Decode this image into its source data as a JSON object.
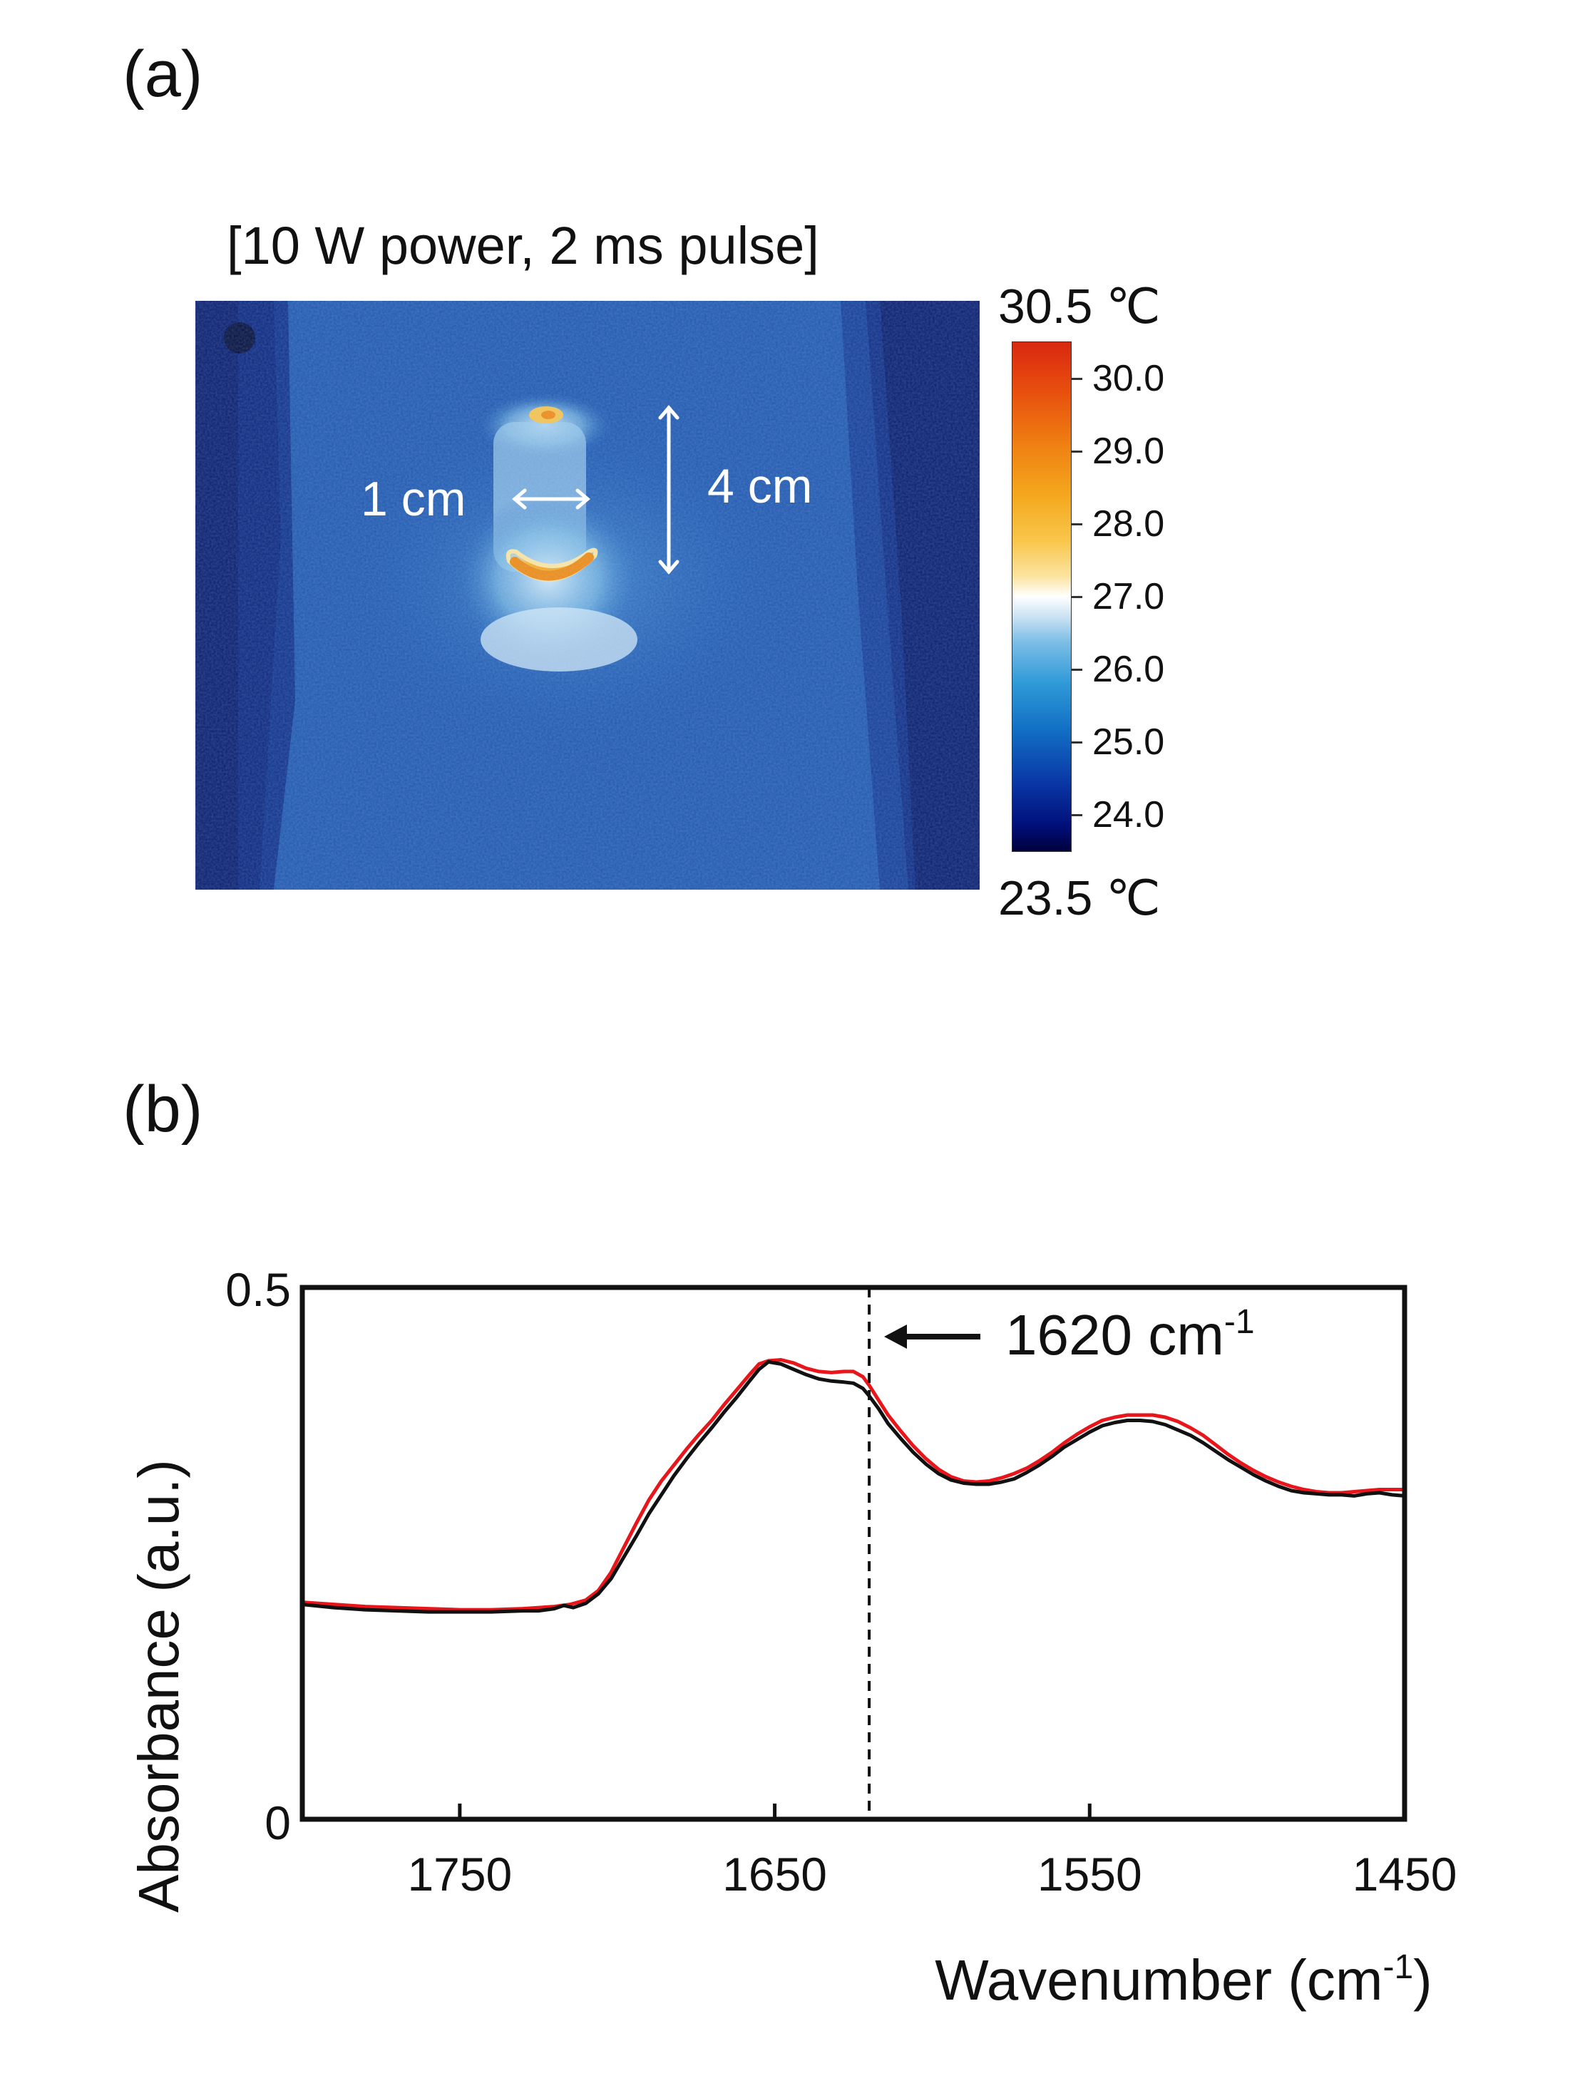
{
  "panel_a": {
    "label": "(a)",
    "title": "[10 W power, 2 ms pulse]",
    "width_annotation": "1 cm",
    "height_annotation": "4 cm",
    "colorbar": {
      "max_label": "30.5 ℃",
      "min_label": "23.5 ℃",
      "ticks": [
        "30.0",
        "29.0",
        "28.0",
        "27.0",
        "26.0",
        "25.0",
        "24.0"
      ],
      "range": [
        23.5,
        30.5
      ],
      "colors": [
        "#00003c",
        "#0a3aa8",
        "#2f9ad8",
        "#ffffff",
        "#f9c64a",
        "#ef7f12",
        "#d92810"
      ]
    }
  },
  "panel_b": {
    "label": "(b)",
    "annotation": "1620 cm",
    "annotation_sup": "-1"
  },
  "chart_data": {
    "type": "line",
    "xlabel": "Wavenumber (cm",
    "xlabel_sup": "-1",
    "xlabel_close": ")",
    "ylabel": "Absorbance (a.u.)",
    "xlim": [
      1800,
      1450
    ],
    "x_reversed": true,
    "ylim": [
      0,
      0.5
    ],
    "xticks": [
      1750,
      1650,
      1550,
      1450
    ],
    "yticks": [
      0,
      0.5
    ],
    "ytick_labels": [
      "0",
      "0.5"
    ],
    "vline_x": 1620,
    "grid": false,
    "series": [
      {
        "color": "#e8161b",
        "points": [
          [
            1800,
            0.204
          ],
          [
            1790,
            0.202
          ],
          [
            1780,
            0.2
          ],
          [
            1770,
            0.199
          ],
          [
            1760,
            0.198
          ],
          [
            1750,
            0.197
          ],
          [
            1740,
            0.197
          ],
          [
            1730,
            0.198
          ],
          [
            1720,
            0.2
          ],
          [
            1715,
            0.202
          ],
          [
            1710,
            0.206
          ],
          [
            1706,
            0.215
          ],
          [
            1702,
            0.232
          ],
          [
            1698,
            0.255
          ],
          [
            1694,
            0.278
          ],
          [
            1690,
            0.3
          ],
          [
            1686,
            0.318
          ],
          [
            1682,
            0.333
          ],
          [
            1678,
            0.348
          ],
          [
            1674,
            0.362
          ],
          [
            1670,
            0.375
          ],
          [
            1666,
            0.39
          ],
          [
            1662,
            0.404
          ],
          [
            1658,
            0.418
          ],
          [
            1655,
            0.428
          ],
          [
            1652,
            0.431
          ],
          [
            1648,
            0.432
          ],
          [
            1644,
            0.429
          ],
          [
            1640,
            0.424
          ],
          [
            1636,
            0.421
          ],
          [
            1632,
            0.42
          ],
          [
            1628,
            0.421
          ],
          [
            1625,
            0.421
          ],
          [
            1622,
            0.416
          ],
          [
            1620,
            0.408
          ],
          [
            1617,
            0.394
          ],
          [
            1614,
            0.38
          ],
          [
            1610,
            0.365
          ],
          [
            1606,
            0.351
          ],
          [
            1602,
            0.339
          ],
          [
            1598,
            0.329
          ],
          [
            1594,
            0.322
          ],
          [
            1590,
            0.318
          ],
          [
            1586,
            0.317
          ],
          [
            1582,
            0.318
          ],
          [
            1578,
            0.321
          ],
          [
            1574,
            0.325
          ],
          [
            1570,
            0.33
          ],
          [
            1566,
            0.337
          ],
          [
            1562,
            0.345
          ],
          [
            1558,
            0.354
          ],
          [
            1554,
            0.362
          ],
          [
            1550,
            0.369
          ],
          [
            1546,
            0.375
          ],
          [
            1542,
            0.378
          ],
          [
            1538,
            0.38
          ],
          [
            1534,
            0.38
          ],
          [
            1530,
            0.38
          ],
          [
            1526,
            0.378
          ],
          [
            1522,
            0.374
          ],
          [
            1518,
            0.368
          ],
          [
            1514,
            0.361
          ],
          [
            1510,
            0.352
          ],
          [
            1506,
            0.343
          ],
          [
            1502,
            0.335
          ],
          [
            1498,
            0.328
          ],
          [
            1494,
            0.322
          ],
          [
            1490,
            0.317
          ],
          [
            1486,
            0.313
          ],
          [
            1482,
            0.31
          ],
          [
            1478,
            0.308
          ],
          [
            1474,
            0.307
          ],
          [
            1470,
            0.307
          ],
          [
            1466,
            0.308
          ],
          [
            1462,
            0.309
          ],
          [
            1458,
            0.31
          ],
          [
            1454,
            0.31
          ],
          [
            1450,
            0.31
          ]
        ]
      },
      {
        "color": "#111111",
        "points": [
          [
            1800,
            0.202
          ],
          [
            1790,
            0.199
          ],
          [
            1780,
            0.197
          ],
          [
            1770,
            0.196
          ],
          [
            1760,
            0.195
          ],
          [
            1750,
            0.195
          ],
          [
            1740,
            0.195
          ],
          [
            1730,
            0.196
          ],
          [
            1725,
            0.196
          ],
          [
            1720,
            0.198
          ],
          [
            1717,
            0.201
          ],
          [
            1714,
            0.199
          ],
          [
            1710,
            0.203
          ],
          [
            1706,
            0.212
          ],
          [
            1702,
            0.226
          ],
          [
            1698,
            0.246
          ],
          [
            1694,
            0.266
          ],
          [
            1690,
            0.287
          ],
          [
            1686,
            0.305
          ],
          [
            1682,
            0.323
          ],
          [
            1678,
            0.339
          ],
          [
            1674,
            0.354
          ],
          [
            1670,
            0.368
          ],
          [
            1666,
            0.383
          ],
          [
            1662,
            0.397
          ],
          [
            1658,
            0.412
          ],
          [
            1655,
            0.423
          ],
          [
            1652,
            0.43
          ],
          [
            1648,
            0.428
          ],
          [
            1644,
            0.423
          ],
          [
            1640,
            0.418
          ],
          [
            1636,
            0.414
          ],
          [
            1632,
            0.412
          ],
          [
            1628,
            0.411
          ],
          [
            1625,
            0.41
          ],
          [
            1622,
            0.405
          ],
          [
            1620,
            0.398
          ],
          [
            1617,
            0.386
          ],
          [
            1614,
            0.372
          ],
          [
            1610,
            0.358
          ],
          [
            1606,
            0.345
          ],
          [
            1602,
            0.334
          ],
          [
            1598,
            0.325
          ],
          [
            1594,
            0.319
          ],
          [
            1590,
            0.316
          ],
          [
            1586,
            0.315
          ],
          [
            1582,
            0.315
          ],
          [
            1578,
            0.317
          ],
          [
            1574,
            0.32
          ],
          [
            1570,
            0.326
          ],
          [
            1566,
            0.333
          ],
          [
            1562,
            0.341
          ],
          [
            1558,
            0.35
          ],
          [
            1554,
            0.357
          ],
          [
            1550,
            0.364
          ],
          [
            1546,
            0.37
          ],
          [
            1542,
            0.373
          ],
          [
            1538,
            0.375
          ],
          [
            1534,
            0.375
          ],
          [
            1530,
            0.374
          ],
          [
            1526,
            0.371
          ],
          [
            1522,
            0.366
          ],
          [
            1518,
            0.361
          ],
          [
            1514,
            0.354
          ],
          [
            1510,
            0.346
          ],
          [
            1506,
            0.338
          ],
          [
            1502,
            0.331
          ],
          [
            1498,
            0.324
          ],
          [
            1494,
            0.318
          ],
          [
            1490,
            0.313
          ],
          [
            1486,
            0.309
          ],
          [
            1482,
            0.307
          ],
          [
            1478,
            0.306
          ],
          [
            1474,
            0.305
          ],
          [
            1470,
            0.305
          ],
          [
            1466,
            0.304
          ],
          [
            1462,
            0.306
          ],
          [
            1458,
            0.307
          ],
          [
            1454,
            0.305
          ],
          [
            1450,
            0.304
          ]
        ]
      }
    ]
  }
}
